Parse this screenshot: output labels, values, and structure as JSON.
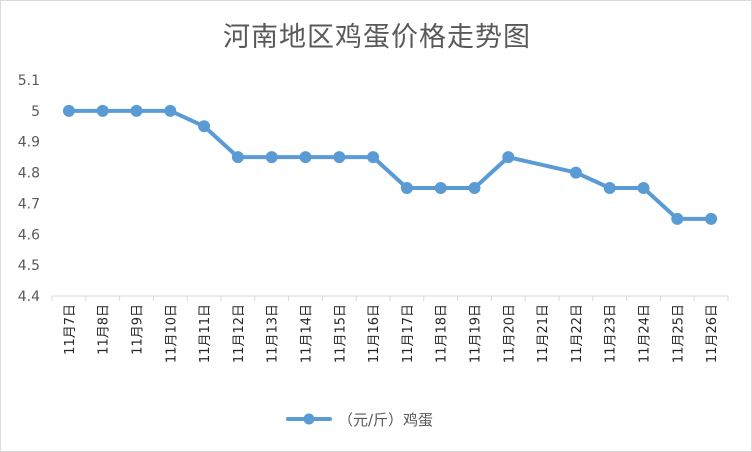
{
  "chart_data": {
    "type": "line",
    "title": "河南地区鸡蛋价格走势图",
    "xlabel": "",
    "ylabel": "",
    "categories": [
      "11月7日",
      "11月8日",
      "11月9日",
      "11月10日",
      "11月11日",
      "11月12日",
      "11月13日",
      "11月14日",
      "11月15日",
      "11月16日",
      "11月17日",
      "11月18日",
      "11月19日",
      "11月20日",
      "11月21日",
      "11月22日",
      "11月23日",
      "11月24日",
      "11月25日",
      "11月26日"
    ],
    "series": [
      {
        "name": "（元/斤）鸡蛋",
        "color": "#5b9bd5",
        "values": [
          5.0,
          5.0,
          5.0,
          5.0,
          4.95,
          4.85,
          4.85,
          4.85,
          4.85,
          4.85,
          4.75,
          4.75,
          4.75,
          4.85,
          null,
          4.8,
          4.75,
          4.75,
          4.65,
          4.65
        ]
      }
    ],
    "ylim": [
      4.4,
      5.1
    ],
    "yticks": [
      "4.4",
      "4.5",
      "4.6",
      "4.7",
      "4.8",
      "4.9",
      "5",
      "5.1"
    ],
    "grid": false,
    "legend": "bottom"
  }
}
